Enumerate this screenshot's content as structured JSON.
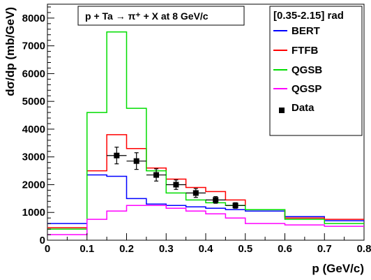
{
  "chart_data": {
    "type": "line",
    "title": "p + Ta → π⁺ + X at 8 GeV/c",
    "angle_range": "[0.35-2.15] rad",
    "xlabel": "p (GeV/c)",
    "ylabel": "dσ/dp (mb/GeV)",
    "xlim": [
      0,
      0.8
    ],
    "ylim": [
      0,
      8500
    ],
    "x_ticks": [
      0,
      0.1,
      0.2,
      0.3,
      0.4,
      0.5,
      0.6,
      0.7,
      0.8
    ],
    "x_tick_labels": [
      "0",
      "0.1",
      "0.2",
      "0.3",
      "0.4",
      "0.5",
      "0.6",
      "0.7",
      "0.8"
    ],
    "y_ticks": [
      0,
      1000,
      2000,
      3000,
      4000,
      5000,
      6000,
      7000,
      8000
    ],
    "y_tick_labels": [
      "0",
      "1000",
      "2000",
      "3000",
      "4000",
      "5000",
      "6000",
      "7000",
      "8000"
    ],
    "grid": false,
    "legend_position": "top-right",
    "bin_edges": [
      0,
      0.1,
      0.15,
      0.2,
      0.25,
      0.3,
      0.35,
      0.4,
      0.45,
      0.5,
      0.6,
      0.7,
      0.8
    ],
    "series": [
      {
        "name": "BERT",
        "color": "#0000ff",
        "style": "histogram",
        "values": [
          600,
          2350,
          2300,
          1500,
          1300,
          1250,
          1200,
          1150,
          1100,
          1050,
          850,
          700
        ]
      },
      {
        "name": "FTFB",
        "color": "#ff0000",
        "style": "histogram",
        "values": [
          450,
          2500,
          3800,
          3300,
          2600,
          2200,
          1900,
          1750,
          1450,
          1100,
          800,
          750
        ]
      },
      {
        "name": "QGSB",
        "color": "#00dd00",
        "style": "histogram",
        "values": [
          400,
          4600,
          7500,
          4750,
          2500,
          1700,
          1450,
          1350,
          1250,
          1100,
          750,
          600
        ]
      },
      {
        "name": "QGSP",
        "color": "#ff00ff",
        "style": "histogram",
        "values": [
          200,
          750,
          1050,
          1250,
          1250,
          1150,
          1050,
          950,
          800,
          600,
          550,
          500
        ]
      },
      {
        "name": "Data",
        "color": "#000000",
        "style": "points",
        "points": [
          {
            "x": 0.175,
            "y": 3050,
            "yerr": 300
          },
          {
            "x": 0.225,
            "y": 2850,
            "yerr": 300
          },
          {
            "x": 0.275,
            "y": 2350,
            "yerr": 220
          },
          {
            "x": 0.325,
            "y": 2000,
            "yerr": 170
          },
          {
            "x": 0.375,
            "y": 1700,
            "yerr": 160
          },
          {
            "x": 0.425,
            "y": 1450,
            "yerr": 120
          },
          {
            "x": 0.475,
            "y": 1250,
            "yerr": 100
          }
        ]
      }
    ]
  }
}
